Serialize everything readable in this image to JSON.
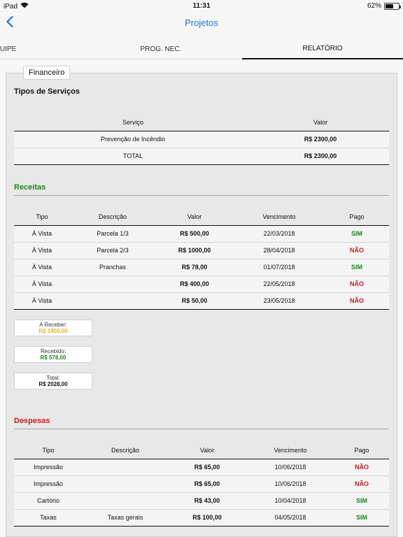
{
  "status_bar": {
    "device": "iPad",
    "time": "11:31",
    "battery": "62%",
    "battery_level": 0.62
  },
  "nav": {
    "title": "Projetos"
  },
  "tabs": [
    {
      "label": "UIPE",
      "active": false
    },
    {
      "label": "PROG. NEC.",
      "active": false
    },
    {
      "label": "RELATÓRIO",
      "active": true
    }
  ],
  "section_chip": "Financeiro",
  "servicos": {
    "title": "Tipos de Serviços",
    "headers": [
      "Serviço",
      "Valor"
    ],
    "rows": [
      {
        "servico": "Prevenção de Incêndio",
        "valor": "R$ 2300,00"
      },
      {
        "servico": "TOTAL",
        "valor": "R$ 2300,00"
      }
    ]
  },
  "receitas": {
    "title": "Receitas",
    "headers": [
      "Tipo",
      "Descrição",
      "Valor",
      "Vencimento",
      "Pago"
    ],
    "rows": [
      {
        "tipo": "À Vista",
        "descricao": "Parcela 1/3",
        "valor": "R$ 500,00",
        "vencimento": "22/03/2018",
        "pago": "SIM"
      },
      {
        "tipo": "À Vista",
        "descricao": "Parcela 2/3",
        "valor": "R$ 1000,00",
        "vencimento": "28/04/2018",
        "pago": "NÃO"
      },
      {
        "tipo": "À Vista",
        "descricao": "Pranchas",
        "valor": "R$ 78,00",
        "vencimento": "01/07/2018",
        "pago": "SIM"
      },
      {
        "tipo": "À Vista",
        "descricao": "",
        "valor": "R$ 400,00",
        "vencimento": "22/05/2018",
        "pago": "NÃO"
      },
      {
        "tipo": "À Vista",
        "descricao": "",
        "valor": "R$ 50,00",
        "vencimento": "23/05/2018",
        "pago": "NÃO"
      }
    ],
    "summary": {
      "a_receber_label": "A Receber:",
      "a_receber_value": "R$ 1450,00",
      "recebido_label": "Recebido:",
      "recebido_value": "R$ 578,00",
      "total_label": "Total:",
      "total_value": "R$ 2028,00"
    }
  },
  "despesas": {
    "title": "Despesas",
    "headers": [
      "Tipo",
      "Descrição",
      "Valor",
      "Vencimento",
      "Pago"
    ],
    "rows": [
      {
        "tipo": "Impressão",
        "descricao": "",
        "valor": "R$ 65,00",
        "vencimento": "10/06/2018",
        "pago": "NÃO"
      },
      {
        "tipo": "Impressão",
        "descricao": "",
        "valor": "R$ 65,00",
        "vencimento": "10/06/2018",
        "pago": "NÃO"
      },
      {
        "tipo": "Cartório",
        "descricao": "",
        "valor": "R$ 43,00",
        "vencimento": "10/04/2018",
        "pago": "SIM"
      },
      {
        "tipo": "Taxas",
        "descricao": "Taxas gerais",
        "valor": "R$ 100,00",
        "vencimento": "04/05/2018",
        "pago": "SIM"
      }
    ]
  },
  "colors": {
    "accent": "#1a73e8",
    "receitas_title": "#1a8a1a",
    "despesas_title": "#d61a1a",
    "a_receber": "#f2b21b",
    "recebido": "#1a8a1a"
  }
}
